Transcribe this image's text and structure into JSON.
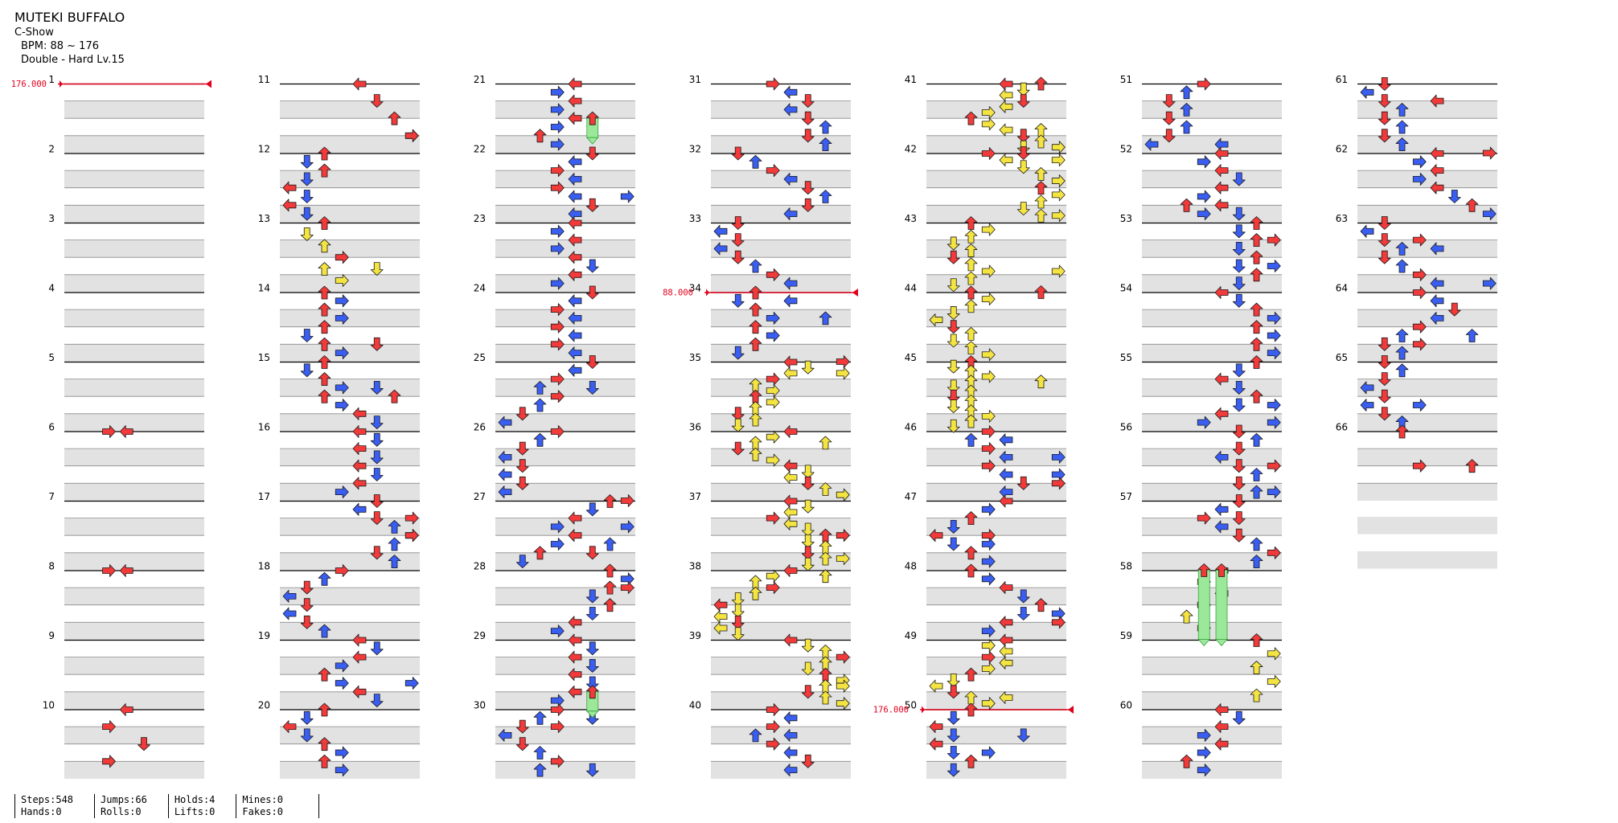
{
  "song": {
    "title": "MUTEKI BUFFALO",
    "artist": "C-Show",
    "bpm_line": "BPM: 88 ~ 176",
    "difficulty_line": "Double - Hard  Lv.15"
  },
  "chart_data": {
    "type": "step-chart",
    "style": "Double",
    "lanes": 8,
    "measures_per_column": 10,
    "bpm_changes": [
      {
        "measure": 1,
        "label": "176.000"
      },
      {
        "measure": 34,
        "label": "88.000"
      },
      {
        "measure": 50,
        "label": "176.000"
      }
    ],
    "colors": {
      "quarter": "#f23a3a",
      "eighth": "#3a5ef2",
      "sixteenth": "#f4e442",
      "other": "#f59a3c",
      "hold": "#9be89b",
      "bpm": "#e0001c",
      "band": "#e2e2e2"
    }
  },
  "stats": [
    {
      "a": "Steps:548",
      "b": "Hands:0"
    },
    {
      "a": "Jumps:66",
      "b": "Rolls:0"
    },
    {
      "a": "Holds:4",
      "b": "Lifts:0"
    },
    {
      "a": "Mines:0",
      "b": "Fakes:0"
    }
  ]
}
